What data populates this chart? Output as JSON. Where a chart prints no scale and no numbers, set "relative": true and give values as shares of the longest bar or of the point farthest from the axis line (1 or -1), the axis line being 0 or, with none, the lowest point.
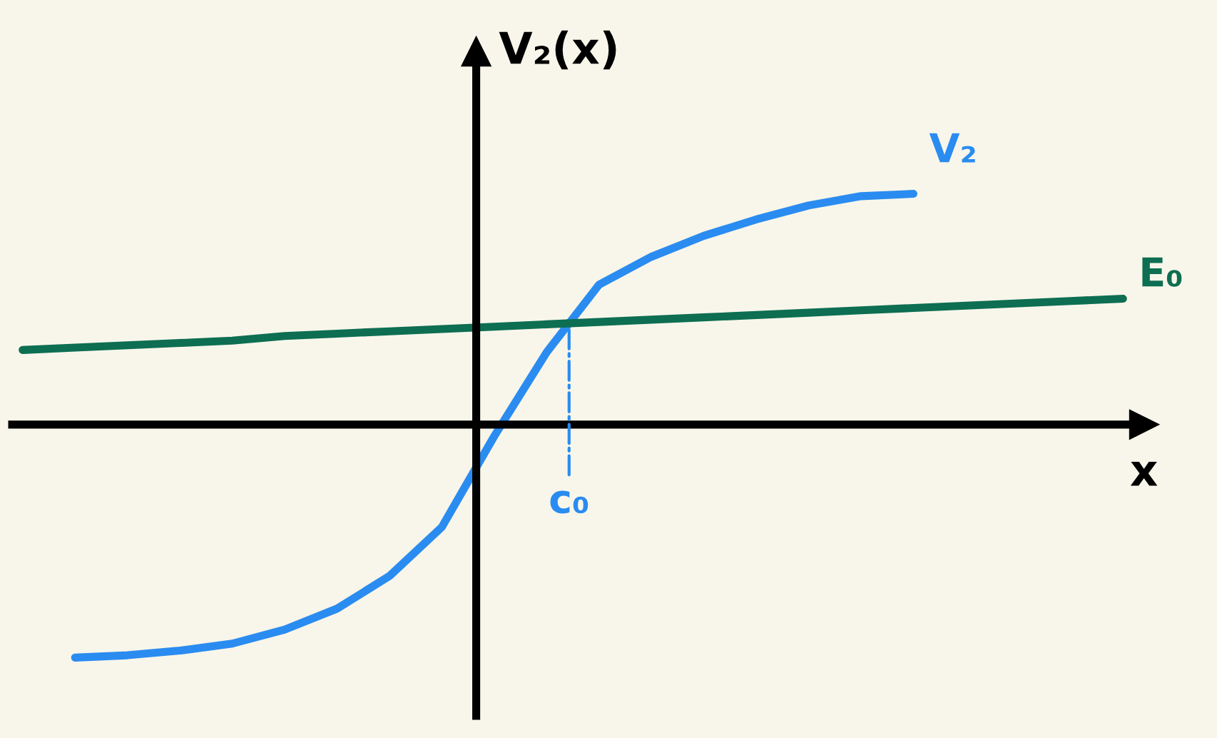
{
  "chart_data": {
    "type": "line",
    "relative": true,
    "xlabel": "x",
    "ylabel": "V₂(x)",
    "categories": [
      null,
      null,
      null,
      null,
      null,
      null,
      null,
      null,
      null,
      null,
      null,
      null,
      null,
      null,
      null,
      null,
      null,
      null,
      null,
      null,
      null,
      null
    ],
    "series": [
      {
        "name": "V₂",
        "color": "#2a8cf0",
        "values": [
          null,
          -1.0,
          -0.99,
          -0.97,
          -0.94,
          -0.88,
          -0.79,
          -0.65,
          -0.44,
          -0.05,
          0.31,
          0.6,
          0.72,
          0.81,
          0.88,
          0.94,
          0.98,
          0.99,
          null,
          null,
          null,
          null
        ]
      },
      {
        "name": "E₀",
        "color": "#0d6e52",
        "values": [
          0.32,
          0.33,
          0.34,
          0.35,
          0.36,
          0.38,
          0.39,
          0.4,
          0.41,
          0.42,
          0.43,
          0.44,
          0.45,
          0.46,
          0.47,
          0.48,
          0.49,
          0.5,
          0.51,
          0.52,
          0.53,
          0.54
        ]
      }
    ],
    "annotations": [
      "c₀"
    ],
    "legend": false,
    "line_style": "solid"
  }
}
